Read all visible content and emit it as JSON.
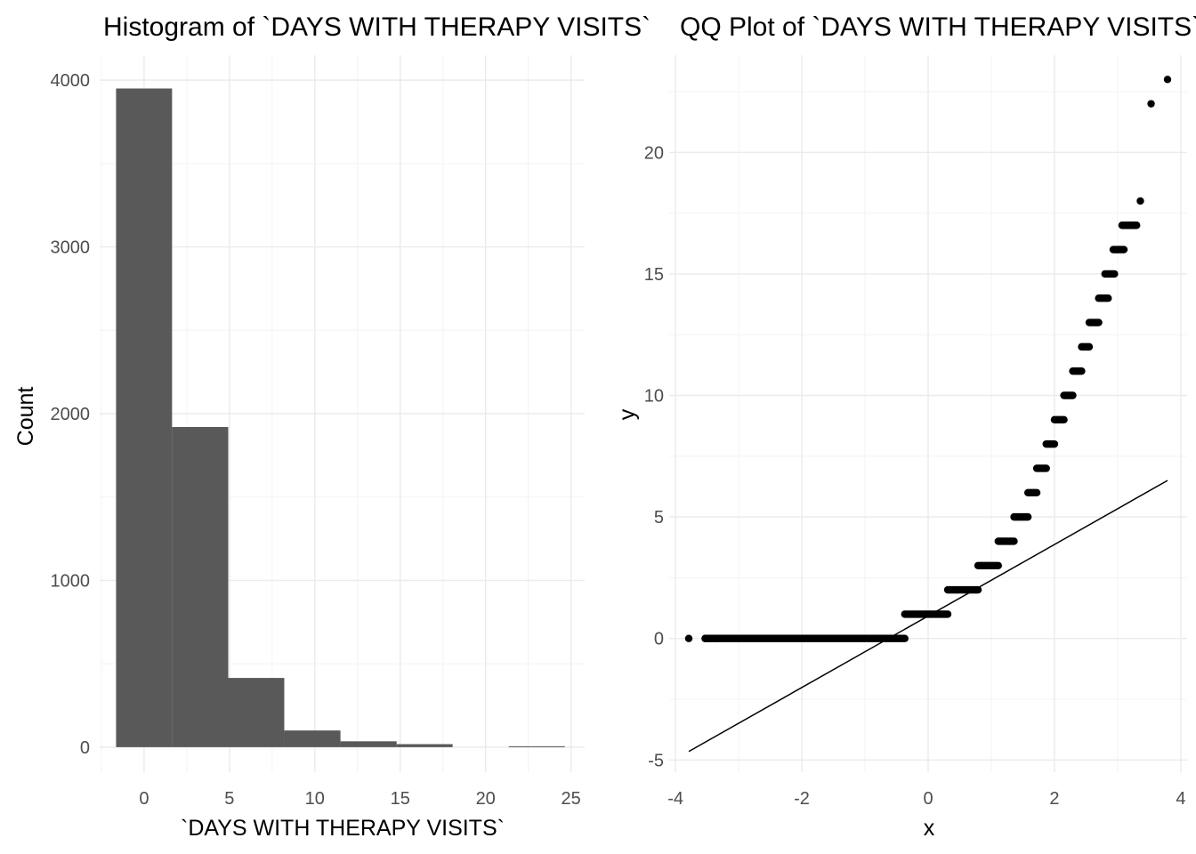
{
  "chart_data": [
    {
      "type": "bar",
      "title": "Histogram of `DAYS WITH THERAPY VISITS`",
      "xlabel": "`DAYS WITH THERAPY VISITS`",
      "ylabel": "Count",
      "xlim": [
        -2.6,
        25.8
      ],
      "ylim": [
        -150,
        4150
      ],
      "x_ticks": [
        0,
        5,
        10,
        15,
        20,
        25
      ],
      "y_ticks": [
        0,
        1000,
        2000,
        3000,
        4000
      ],
      "bins": [
        {
          "x0": -1.64,
          "x1": 1.64,
          "count": 3950
        },
        {
          "x0": 1.64,
          "x1": 4.93,
          "count": 1920
        },
        {
          "x0": 4.93,
          "x1": 8.21,
          "count": 415
        },
        {
          "x0": 8.21,
          "x1": 11.5,
          "count": 100
        },
        {
          "x0": 11.5,
          "x1": 14.79,
          "count": 35
        },
        {
          "x0": 14.79,
          "x1": 18.07,
          "count": 18
        },
        {
          "x0": 18.07,
          "x1": 21.36,
          "count": 0
        },
        {
          "x0": 21.36,
          "x1": 24.64,
          "count": 5
        }
      ],
      "bar_color": "#595959",
      "grid": true
    },
    {
      "type": "scatter",
      "title": "QQ Plot of `DAYS WITH THERAPY VISITS`",
      "xlabel": "x",
      "ylabel": "y",
      "xlim": [
        -4.1,
        4.1
      ],
      "ylim": [
        -5.5,
        24.0
      ],
      "x_ticks": [
        -4,
        -2,
        0,
        2,
        4
      ],
      "y_ticks": [
        -5,
        0,
        5,
        10,
        15,
        20
      ],
      "clusters": [
        {
          "y": 0,
          "x_from": -3.53,
          "x_to": -0.37,
          "singles": [
            -3.79,
            -3.53,
            -3.44,
            -3.36
          ]
        },
        {
          "y": 1,
          "x_from": -0.37,
          "x_to": 0.31
        },
        {
          "y": 2,
          "x_from": 0.31,
          "x_to": 0.79
        },
        {
          "y": 3,
          "x_from": 0.79,
          "x_to": 1.11
        },
        {
          "y": 4,
          "x_from": 1.11,
          "x_to": 1.36
        },
        {
          "y": 5,
          "x_from": 1.36,
          "x_to": 1.58
        },
        {
          "y": 6,
          "x_from": 1.58,
          "x_to": 1.72
        },
        {
          "y": 7,
          "x_from": 1.72,
          "x_to": 1.87
        },
        {
          "y": 8,
          "x_from": 1.87,
          "x_to": 2.0
        },
        {
          "y": 9,
          "x_from": 2.0,
          "x_to": 2.15
        },
        {
          "y": 10,
          "x_from": 2.15,
          "x_to": 2.29
        },
        {
          "y": 11,
          "x_from": 2.29,
          "x_to": 2.43
        },
        {
          "y": 12,
          "x_from": 2.43,
          "x_to": 2.55
        },
        {
          "y": 13,
          "x_from": 2.55,
          "x_to": 2.7
        },
        {
          "y": 14,
          "x_from": 2.7,
          "x_to": 2.85
        },
        {
          "y": 15,
          "x_from": 2.8,
          "x_to": 2.95
        },
        {
          "y": 16,
          "x_from": 2.93,
          "x_to": 3.1
        },
        {
          "y": 17,
          "x_from": 3.07,
          "x_to": 3.3
        },
        {
          "y": 18,
          "x_from": 3.36,
          "x_to": 3.36
        },
        {
          "y": 22,
          "x_from": 3.53,
          "x_to": 3.53
        },
        {
          "y": 23,
          "x_from": 3.79,
          "x_to": 3.79
        }
      ],
      "reference_line": {
        "x": [
          -3.79,
          3.79
        ],
        "y": [
          -4.65,
          6.5
        ]
      },
      "point_color": "#000000",
      "grid": true
    }
  ]
}
